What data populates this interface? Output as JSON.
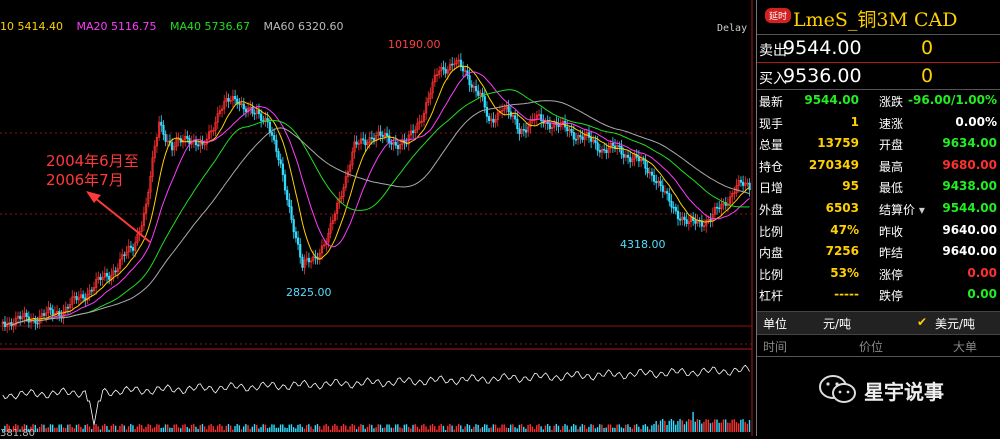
{
  "ma_legend": [
    {
      "text": "10 5414.40",
      "color": "#ffd000"
    },
    {
      "text": "MA20 5116.75",
      "color": "#ff3cff"
    },
    {
      "text": "MA40 5736.67",
      "color": "#22dd22"
    },
    {
      "text": "MA60 6320.60",
      "color": "#bbbbbb"
    }
  ],
  "delay_tag": "Delay",
  "annotation": {
    "line1": "2004年6月至",
    "line2": "2006年7月"
  },
  "price_labels": {
    "high": "10190.00",
    "low1": "2825.00",
    "low2": "4318.00"
  },
  "bottom_value": "381.80",
  "panel": {
    "badge": "延时",
    "title": "LmeS_铜3M CAD",
    "ask": {
      "label": "卖出",
      "price": "9544.00",
      "volume": "0"
    },
    "bid": {
      "label": "买入",
      "price": "9536.00",
      "volume": "0"
    },
    "left_stats": [
      {
        "label": "最新",
        "value": "9544.00",
        "color": "#22ee22"
      },
      {
        "label": "现手",
        "value": "1",
        "color": "#ffd000"
      },
      {
        "label": "总量",
        "value": "13759",
        "color": "#ffd000"
      },
      {
        "label": "持仓",
        "value": "270349",
        "color": "#ffd000"
      },
      {
        "label": "日增",
        "value": "95",
        "color": "#ffd000"
      },
      {
        "label": "外盘",
        "value": "6503",
        "color": "#ffd000"
      },
      {
        "label": "比例",
        "value": "47%",
        "color": "#ffd000"
      },
      {
        "label": "内盘",
        "value": "7256",
        "color": "#ffd000"
      },
      {
        "label": "比例",
        "value": "53%",
        "color": "#ffd000"
      },
      {
        "label": "杠杆",
        "value": "-----",
        "color": "#ffd000"
      }
    ],
    "right_stats": [
      {
        "label": "涨跌",
        "value": "-96.00/1.00%",
        "color": "#22ee22"
      },
      {
        "label": "速涨",
        "value": "0.00%",
        "color": "#ffffff"
      },
      {
        "label": "开盘",
        "value": "9634.00",
        "color": "#22ee22"
      },
      {
        "label": "最高",
        "value": "9680.00",
        "color": "#ff3030"
      },
      {
        "label": "最低",
        "value": "9438.00",
        "color": "#22ee22"
      },
      {
        "label": "结算价",
        "value": "9544.00",
        "color": "#22ee22"
      },
      {
        "label": "昨收",
        "value": "9640.00",
        "color": "#ffffff"
      },
      {
        "label": "昨结",
        "value": "9640.00",
        "color": "#ffffff"
      },
      {
        "label": "涨停",
        "value": "0.00",
        "color": "#ff3030"
      },
      {
        "label": "跌停",
        "value": "0.00",
        "color": "#22ee22"
      }
    ],
    "unit_label": "单位",
    "unit_value": "元/吨",
    "unit_selected": "美元/吨",
    "tick_cols": [
      "时间",
      "价位",
      "大单"
    ],
    "watermark": "星宇说事"
  }
}
